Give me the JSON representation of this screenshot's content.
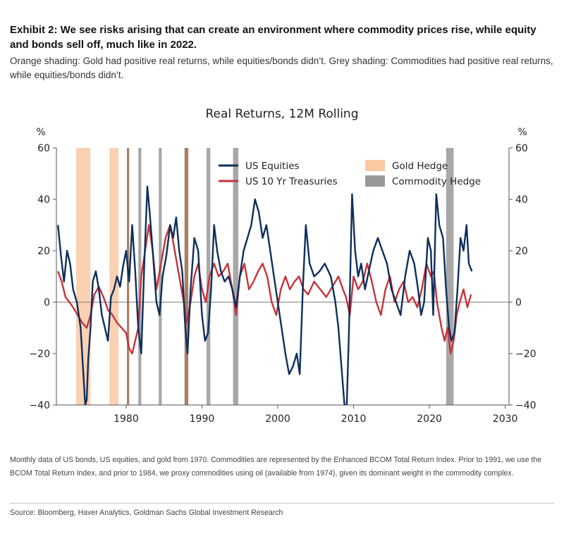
{
  "exhibit": {
    "title": "Exhibit 2: We see risks arising that can create an environment where commodity prices rise, while equity and bonds sell off, much like in 2022.",
    "subtitle": "Orange shading: Gold had positive real returns, while equities/bonds didn’t. Grey shading: Commodities had positive real returns, while equities/bonds didn’t."
  },
  "footnote": "Monthly data of US bonds, US equities, and gold from 1970. Commodities are represented by the Enhanced BCOM Total Return Index. Prior to 1991, we use the BCOM Total Return Index, and prior to 1984, we proxy commodities using oil (available from 1974), given its dominant weight in the commodity complex.",
  "source": "Source: Bloomberg, Haver Analytics, Goldman Sachs Global Investment Research",
  "colors": {
    "equities": "#0d2f5c",
    "treasuries": "#c8323a",
    "gold": "#f9c9a4",
    "commodity": "#999999",
    "overlap": "#9a6a4a",
    "axis": "#555555",
    "zero": "#777777"
  },
  "chart_data": {
    "type": "line",
    "title": "Real Returns, 12M Rolling",
    "ylabel_left": "%",
    "ylabel_right": "%",
    "xlim": [
      1970.8,
      2030.5
    ],
    "ylim": [
      -40,
      60
    ],
    "x_ticks": [
      1980,
      1990,
      2000,
      2010,
      2020,
      2030
    ],
    "x_tick_labels": [
      "1980",
      "1990",
      "2000",
      "2010",
      "2020",
      "2030"
    ],
    "y_ticks": [
      -40,
      -20,
      0,
      20,
      40,
      60
    ],
    "y_tick_labels": [
      "−40",
      "−20",
      "0",
      "20",
      "40",
      "60"
    ],
    "legend": {
      "location": "top",
      "items": [
        {
          "key": "equities",
          "label": "US Equities",
          "kind": "line"
        },
        {
          "key": "treasuries",
          "label": "US 10 Yr Treasuries",
          "kind": "line"
        },
        {
          "key": "gold",
          "label": "Gold Hedge",
          "kind": "patch"
        },
        {
          "key": "commodity",
          "label": "Commodity Hedge",
          "kind": "patch"
        }
      ]
    },
    "shaded_regions": [
      {
        "type": "gold",
        "start": 1973.4,
        "end": 1975.3
      },
      {
        "type": "gold",
        "start": 1977.8,
        "end": 1979.0
      },
      {
        "type": "overlap",
        "start": 1980.1,
        "end": 1980.4
      },
      {
        "type": "commodity",
        "start": 1981.6,
        "end": 1982.0
      },
      {
        "type": "commodity",
        "start": 1984.3,
        "end": 1984.7
      },
      {
        "type": "overlap",
        "start": 1987.7,
        "end": 1988.2
      },
      {
        "type": "commodity",
        "start": 1990.6,
        "end": 1991.1
      },
      {
        "type": "commodity",
        "start": 1994.1,
        "end": 1994.8
      },
      {
        "type": "commodity",
        "start": 2022.2,
        "end": 2023.2
      }
    ],
    "series": [
      {
        "name": "US Equities",
        "key": "equities",
        "x": [
          1971.0,
          1971.4,
          1971.8,
          1972.2,
          1972.6,
          1973.0,
          1973.5,
          1974.0,
          1974.3,
          1974.6,
          1974.8,
          1975.0,
          1975.3,
          1975.6,
          1976.0,
          1976.4,
          1976.8,
          1977.2,
          1977.6,
          1978.0,
          1978.4,
          1978.8,
          1979.2,
          1979.6,
          1980.0,
          1980.4,
          1980.8,
          1981.2,
          1981.6,
          1982.0,
          1982.4,
          1982.8,
          1983.1,
          1983.5,
          1984.0,
          1984.4,
          1984.8,
          1985.3,
          1985.8,
          1986.2,
          1986.6,
          1987.0,
          1987.4,
          1987.8,
          1988.1,
          1988.5,
          1989.0,
          1989.5,
          1990.0,
          1990.4,
          1990.8,
          1991.2,
          1991.6,
          1992.0,
          1992.5,
          1993.0,
          1993.5,
          1994.0,
          1994.5,
          1995.0,
          1995.5,
          1996.0,
          1996.5,
          1997.0,
          1997.5,
          1998.0,
          1998.5,
          1999.0,
          1999.5,
          2000.0,
          2000.5,
          2001.0,
          2001.5,
          2002.0,
          2002.5,
          2002.9,
          2003.3,
          2003.7,
          2004.2,
          2004.8,
          2005.5,
          2006.2,
          2007.0,
          2007.6,
          2008.0,
          2008.4,
          2008.8,
          2009.1,
          2009.4,
          2009.8,
          2010.2,
          2010.6,
          2011.0,
          2011.5,
          2012.0,
          2012.6,
          2013.2,
          2013.8,
          2014.4,
          2015.0,
          2015.6,
          2016.2,
          2016.8,
          2017.4,
          2018.0,
          2018.5,
          2018.9,
          2019.3,
          2019.8,
          2020.2,
          2020.5,
          2020.9,
          2021.3,
          2021.8,
          2022.2,
          2022.6,
          2022.9,
          2023.3,
          2023.7,
          2024.1,
          2024.5,
          2024.9,
          2025.2,
          2025.6
        ],
        "values": [
          30,
          18,
          8,
          20,
          15,
          5,
          0,
          -10,
          -25,
          -40,
          -38,
          -22,
          -10,
          8,
          12,
          5,
          -5,
          -10,
          -15,
          2,
          5,
          10,
          6,
          14,
          20,
          8,
          30,
          12,
          -10,
          -20,
          15,
          45,
          35,
          20,
          0,
          -5,
          10,
          18,
          30,
          25,
          33,
          20,
          12,
          -10,
          -20,
          5,
          25,
          20,
          -5,
          -15,
          -12,
          5,
          30,
          20,
          12,
          8,
          10,
          5,
          -2,
          10,
          20,
          25,
          30,
          40,
          35,
          25,
          30,
          20,
          10,
          0,
          -10,
          -20,
          -28,
          -25,
          -20,
          -28,
          5,
          30,
          15,
          10,
          12,
          15,
          10,
          0,
          -10,
          -25,
          -40,
          -40,
          -10,
          42,
          20,
          10,
          15,
          5,
          12,
          20,
          25,
          20,
          15,
          5,
          0,
          -5,
          10,
          20,
          15,
          5,
          -5,
          0,
          25,
          20,
          -5,
          42,
          30,
          25,
          5,
          -10,
          -15,
          -12,
          5,
          25,
          20,
          30,
          15,
          12
        ]
      },
      {
        "name": "US 10 Yr Treasuries",
        "key": "treasuries",
        "x": [
          1971.0,
          1971.5,
          1972.0,
          1972.5,
          1973.0,
          1973.6,
          1974.2,
          1974.8,
          1975.3,
          1975.8,
          1976.4,
          1977.0,
          1977.6,
          1978.2,
          1978.8,
          1979.4,
          1980.0,
          1980.4,
          1980.8,
          1981.2,
          1981.6,
          1982.0,
          1982.5,
          1983.0,
          1983.5,
          1984.0,
          1984.6,
          1985.2,
          1985.8,
          1986.4,
          1987.0,
          1987.6,
          1988.0,
          1988.5,
          1989.0,
          1989.5,
          1990.0,
          1990.5,
          1991.0,
          1991.6,
          1992.2,
          1992.8,
          1993.4,
          1994.0,
          1994.5,
          1995.0,
          1995.6,
          1996.2,
          1996.8,
          1997.4,
          1998.0,
          1998.6,
          1999.2,
          1999.8,
          2000.4,
          2001.0,
          2001.6,
          2002.2,
          2002.8,
          2003.4,
          2004.0,
          2004.8,
          2005.6,
          2006.4,
          2007.2,
          2008.0,
          2008.6,
          2009.0,
          2009.5,
          2010.0,
          2010.6,
          2011.2,
          2011.8,
          2012.4,
          2013.0,
          2013.6,
          2014.2,
          2014.8,
          2015.4,
          2016.0,
          2016.6,
          2017.2,
          2017.8,
          2018.4,
          2019.0,
          2019.6,
          2020.2,
          2020.6,
          2021.0,
          2021.6,
          2022.0,
          2022.4,
          2022.8,
          2023.2,
          2023.6,
          2024.0,
          2024.5,
          2025.0,
          2025.5
        ],
        "values": [
          12,
          8,
          2,
          0,
          -2,
          -5,
          -8,
          -10,
          -5,
          3,
          6,
          2,
          -3,
          -5,
          -8,
          -10,
          -12,
          -18,
          -20,
          -15,
          -10,
          10,
          20,
          30,
          20,
          5,
          15,
          25,
          30,
          20,
          10,
          0,
          -8,
          0,
          10,
          15,
          5,
          0,
          10,
          15,
          10,
          12,
          15,
          5,
          -5,
          10,
          15,
          5,
          8,
          12,
          15,
          10,
          0,
          -5,
          5,
          10,
          5,
          8,
          10,
          5,
          3,
          8,
          5,
          2,
          6,
          10,
          5,
          2,
          -5,
          10,
          5,
          8,
          15,
          8,
          0,
          -5,
          5,
          10,
          0,
          5,
          8,
          0,
          2,
          -2,
          5,
          15,
          10,
          12,
          0,
          -10,
          -15,
          -10,
          -20,
          -15,
          -5,
          0,
          5,
          -2,
          3
        ]
      }
    ]
  }
}
